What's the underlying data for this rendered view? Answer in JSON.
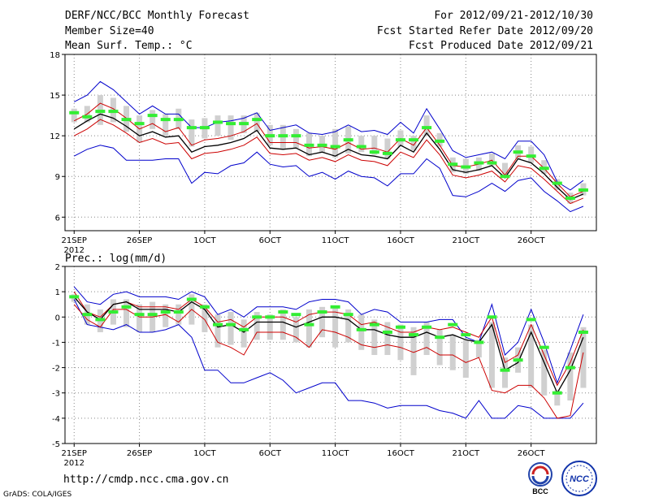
{
  "header": {
    "title": "DERF/NCC/BCC Monthly Forecast",
    "member_size": "Member Size=40",
    "variable": "Mean Surf. Temp.: °C",
    "forecast_period": "For 2012/09/21-2012/10/30",
    "started_refer_date": "Fcst Started Refer Date 2012/09/20",
    "produced_date": "Fcst Produced Date 2012/09/21"
  },
  "footer": {
    "url": "http://cmdp.ncc.cma.gov.cn",
    "grads_credit": "GrADS: COLA/IGES",
    "logo_bcc": "BCC",
    "logo_ncc": "NCC"
  },
  "colors": {
    "envelope": "#0000cc",
    "spread": "#cc0000",
    "mean": "#000000",
    "box": "#d0d0d0",
    "median": "#33ee33",
    "grid": "#888888"
  },
  "chart_data": [
    {
      "type": "line",
      "title": "Mean Surf. Temp.: °C",
      "xlabel": "",
      "ylabel": "°C",
      "ylim": [
        5,
        18
      ],
      "yticks": [
        6,
        9,
        12,
        15,
        18
      ],
      "x_tick_labels": [
        "21SEP",
        "26SEP",
        "1OCT",
        "6OCT",
        "11OCT",
        "16OCT",
        "21OCT",
        "26OCT"
      ],
      "x_tick_days": [
        1,
        6,
        11,
        16,
        21,
        26,
        31,
        36
      ],
      "year_label": "2012",
      "days": [
        1,
        2,
        3,
        4,
        5,
        6,
        7,
        8,
        9,
        10,
        11,
        12,
        13,
        14,
        15,
        16,
        17,
        18,
        19,
        20,
        21,
        22,
        23,
        24,
        25,
        26,
        27,
        28,
        29,
        30,
        31,
        32,
        33,
        34,
        35,
        36,
        37,
        38,
        39,
        40
      ],
      "series": [
        {
          "name": "ensemble max",
          "values": [
            14.5,
            15.0,
            16.0,
            15.4,
            14.5,
            13.6,
            14.2,
            13.6,
            13.6,
            12.6,
            12.6,
            13.0,
            13.1,
            13.3,
            13.7,
            12.4,
            12.6,
            12.8,
            12.2,
            12.1,
            12.3,
            12.8,
            12.3,
            12.4,
            12.1,
            13.0,
            12.2,
            14.0,
            12.5,
            10.9,
            10.4,
            10.6,
            10.8,
            10.3,
            11.6,
            11.6,
            10.6,
            8.6,
            8.0,
            8.7
          ]
        },
        {
          "name": "ensemble min",
          "values": [
            10.5,
            11.0,
            11.3,
            11.1,
            10.2,
            10.2,
            10.2,
            10.3,
            10.3,
            8.5,
            9.3,
            9.2,
            9.8,
            10.0,
            10.8,
            9.9,
            9.7,
            9.8,
            9.0,
            9.3,
            8.8,
            9.4,
            9.0,
            8.9,
            8.3,
            9.2,
            9.2,
            10.3,
            9.6,
            7.6,
            7.5,
            7.9,
            8.5,
            7.9,
            8.7,
            8.9,
            7.9,
            7.2,
            6.4,
            6.8
          ]
        },
        {
          "name": "mean + sd",
          "values": [
            13.1,
            13.6,
            14.4,
            14.0,
            13.3,
            12.5,
            12.9,
            12.3,
            12.6,
            11.3,
            11.7,
            11.8,
            12.0,
            12.3,
            12.9,
            11.5,
            11.5,
            11.5,
            11.1,
            11.2,
            11.0,
            11.5,
            11.0,
            11.1,
            10.8,
            11.8,
            11.3,
            12.6,
            11.3,
            9.8,
            9.7,
            9.9,
            10.2,
            9.1,
            10.5,
            10.5,
            9.6,
            8.5,
            7.5,
            7.9
          ]
        },
        {
          "name": "mean",
          "values": [
            12.5,
            13.1,
            13.6,
            13.3,
            12.7,
            12.0,
            12.3,
            11.9,
            12.0,
            10.8,
            11.2,
            11.3,
            11.5,
            11.8,
            12.4,
            11.1,
            11.0,
            11.1,
            10.6,
            10.8,
            10.5,
            11.0,
            10.6,
            10.5,
            10.3,
            11.3,
            10.8,
            12.2,
            11.0,
            9.5,
            9.3,
            9.5,
            9.8,
            8.9,
            10.3,
            10.0,
            9.2,
            8.2,
            7.3,
            7.7
          ]
        },
        {
          "name": "mean - sd",
          "values": [
            12.0,
            12.5,
            13.2,
            12.8,
            12.2,
            11.5,
            11.8,
            11.4,
            11.5,
            10.3,
            10.7,
            10.8,
            11.0,
            11.3,
            11.9,
            10.7,
            10.6,
            10.7,
            10.2,
            10.4,
            10.1,
            10.6,
            10.2,
            10.1,
            9.8,
            10.8,
            10.4,
            11.7,
            10.6,
            9.1,
            8.9,
            9.1,
            9.4,
            8.6,
            9.8,
            9.6,
            8.8,
            7.9,
            7.0,
            7.4
          ]
        }
      ],
      "box_spread": {
        "name": "ensemble spread bars",
        "low": [
          13.0,
          13.0,
          12.8,
          13.0,
          12.3,
          11.5,
          12.5,
          12.0,
          12.5,
          11.2,
          11.8,
          12.0,
          11.7,
          12.2,
          12.3,
          11.3,
          11.0,
          11.1,
          10.5,
          10.8,
          10.4,
          10.7,
          10.8,
          10.6,
          10.3,
          11.2,
          10.9,
          12.0,
          11.2,
          9.3,
          9.2,
          9.4,
          9.8,
          8.9,
          10.3,
          10.0,
          9.2,
          8.0,
          7.0,
          7.6
        ],
        "high": [
          14.0,
          14.2,
          15.0,
          14.8,
          14.2,
          13.5,
          13.9,
          13.6,
          14.0,
          13.2,
          13.3,
          13.5,
          13.5,
          13.5,
          13.7,
          12.8,
          12.8,
          12.5,
          12.2,
          12.0,
          12.5,
          12.7,
          12.0,
          12.0,
          11.8,
          12.4,
          12.0,
          13.5,
          12.2,
          10.4,
          10.3,
          10.4,
          10.7,
          10.0,
          11.3,
          11.2,
          10.2,
          8.8,
          7.8,
          8.5
        ]
      },
      "median_markers": {
        "name": "ensemble median",
        "values": [
          13.7,
          13.4,
          13.8,
          13.8,
          13.2,
          12.9,
          13.5,
          13.2,
          13.2,
          12.6,
          12.6,
          13.0,
          12.9,
          12.9,
          13.2,
          12.0,
          12.0,
          12.0,
          11.3,
          11.3,
          11.2,
          11.7,
          11.2,
          10.8,
          10.7,
          11.7,
          11.7,
          12.6,
          11.6,
          9.9,
          9.7,
          10.0,
          10.0,
          9.0,
          10.8,
          10.5,
          9.6,
          8.5,
          7.4,
          8.0
        ]
      }
    },
    {
      "type": "line",
      "title": "Prec.: log(mm/d)",
      "xlabel": "",
      "ylabel": "log(mm/d)",
      "ylim": [
        -5,
        2
      ],
      "yticks": [
        -5,
        -4,
        -3,
        -2,
        -1,
        0,
        1,
        2
      ],
      "x_tick_labels": [
        "21SEP",
        "26SEP",
        "1OCT",
        "6OCT",
        "11OCT",
        "16OCT",
        "21OCT",
        "26OCT"
      ],
      "x_tick_days": [
        1,
        6,
        11,
        16,
        21,
        26,
        31,
        36
      ],
      "year_label": "2012",
      "days": [
        1,
        2,
        3,
        4,
        5,
        6,
        7,
        8,
        9,
        10,
        11,
        12,
        13,
        14,
        15,
        16,
        17,
        18,
        19,
        20,
        21,
        22,
        23,
        24,
        25,
        26,
        27,
        28,
        29,
        30,
        31,
        32,
        33,
        34,
        35,
        36,
        37,
        38,
        39,
        40
      ],
      "series": [
        {
          "name": "ensemble max",
          "values": [
            1.2,
            0.6,
            0.5,
            0.9,
            1.0,
            0.8,
            0.8,
            0.8,
            0.7,
            1.0,
            0.8,
            0.1,
            0.3,
            0.0,
            0.4,
            0.4,
            0.4,
            0.3,
            0.6,
            0.7,
            0.7,
            0.6,
            0.1,
            0.3,
            0.2,
            -0.2,
            -0.2,
            -0.2,
            -0.1,
            -0.1,
            -0.8,
            -1.0,
            0.5,
            -1.5,
            -1.0,
            0.3,
            -1.0,
            -2.6,
            -1.3,
            0.1
          ]
        },
        {
          "name": "ensemble min",
          "values": [
            0.7,
            -0.3,
            -0.4,
            -0.5,
            -0.3,
            -0.6,
            -0.6,
            -0.5,
            -0.3,
            -0.8,
            -2.1,
            -2.1,
            -2.6,
            -2.6,
            -2.4,
            -2.2,
            -2.5,
            -3.0,
            -2.8,
            -2.6,
            -2.6,
            -3.3,
            -3.3,
            -3.4,
            -3.6,
            -3.5,
            -3.5,
            -3.5,
            -3.7,
            -3.8,
            -4.0,
            -3.3,
            -4.0,
            -4.0,
            -3.5,
            -3.6,
            -4.0,
            -4.0,
            -4.0,
            -3.4
          ]
        },
        {
          "name": "mean + sd",
          "values": [
            1.0,
            0.2,
            0.0,
            0.5,
            0.6,
            0.4,
            0.4,
            0.4,
            0.3,
            0.7,
            0.4,
            -0.2,
            -0.1,
            -0.4,
            0.0,
            0.0,
            0.0,
            -0.2,
            0.1,
            0.2,
            0.2,
            0.1,
            -0.3,
            -0.2,
            -0.4,
            -0.6,
            -0.6,
            -0.4,
            -0.5,
            -0.4,
            -0.6,
            -0.8,
            0.0,
            -1.8,
            -1.5,
            -0.3,
            -1.5,
            -2.7,
            -1.8,
            -0.5
          ]
        },
        {
          "name": "mean",
          "values": [
            0.8,
            0.2,
            -0.1,
            0.5,
            0.6,
            0.3,
            0.3,
            0.3,
            0.2,
            0.6,
            0.3,
            -0.4,
            -0.3,
            -0.6,
            -0.2,
            -0.2,
            -0.2,
            -0.4,
            -0.2,
            0.0,
            0.0,
            -0.1,
            -0.5,
            -0.5,
            -0.7,
            -0.8,
            -0.8,
            -0.6,
            -0.8,
            -0.7,
            -0.9,
            -1.0,
            -0.3,
            -2.1,
            -1.8,
            -0.6,
            -1.8,
            -3.0,
            -2.1,
            -0.8
          ]
        },
        {
          "name": "mean - sd",
          "values": [
            0.5,
            -0.1,
            -0.4,
            0.3,
            0.3,
            0.0,
            0.0,
            0.1,
            -0.2,
            0.3,
            -0.1,
            -1.0,
            -1.2,
            -1.5,
            -0.6,
            -0.6,
            -0.6,
            -0.8,
            -1.2,
            -0.5,
            -0.6,
            -0.8,
            -1.1,
            -1.2,
            -1.1,
            -1.2,
            -1.4,
            -1.2,
            -1.5,
            -1.5,
            -1.8,
            -1.6,
            -2.9,
            -3.0,
            -2.7,
            -2.7,
            -3.2,
            -4.0,
            -3.9,
            -1.4
          ]
        }
      ],
      "box_spread": {
        "name": "ensemble spread bars",
        "low": [
          0.6,
          -0.3,
          -0.6,
          -0.3,
          -0.4,
          -0.6,
          -0.6,
          -0.4,
          -0.3,
          -0.3,
          -0.6,
          -1.2,
          -1.1,
          -1.2,
          -0.9,
          -0.9,
          -0.9,
          -1.0,
          -1.2,
          -0.8,
          -1.2,
          -1.0,
          -1.3,
          -1.5,
          -1.5,
          -1.7,
          -2.3,
          -1.5,
          -1.9,
          -2.1,
          -2.4,
          -1.6,
          -2.8,
          -2.8,
          -2.2,
          -2.8,
          -3.1,
          -3.5,
          -3.3,
          -2.8
        ],
        "high": [
          0.9,
          0.5,
          0.3,
          0.7,
          0.7,
          0.5,
          0.6,
          0.5,
          0.5,
          0.9,
          0.5,
          0.1,
          0.2,
          -0.1,
          0.2,
          0.1,
          0.3,
          0.0,
          0.3,
          0.4,
          0.4,
          0.3,
          0.1,
          -0.1,
          -0.2,
          -0.3,
          -0.4,
          -0.2,
          -0.5,
          -0.7,
          -0.9,
          -0.9,
          -0.2,
          -1.6,
          -1.2,
          -0.3,
          -1.3,
          -2.9,
          -1.4,
          -0.4
        ]
      },
      "median_markers": {
        "name": "ensemble median",
        "values": [
          0.8,
          0.1,
          -0.1,
          0.2,
          0.4,
          0.1,
          0.1,
          0.2,
          0.2,
          0.7,
          0.4,
          -0.3,
          -0.3,
          -0.5,
          0.0,
          0.0,
          0.2,
          0.1,
          -0.3,
          0.2,
          0.4,
          0.1,
          -0.5,
          -0.3,
          -0.6,
          -0.4,
          -0.7,
          -0.4,
          -0.8,
          -0.3,
          -0.7,
          -1.0,
          0.0,
          -2.1,
          -1.7,
          -0.1,
          -1.2,
          -3.0,
          -2.0,
          -0.6
        ]
      }
    }
  ]
}
